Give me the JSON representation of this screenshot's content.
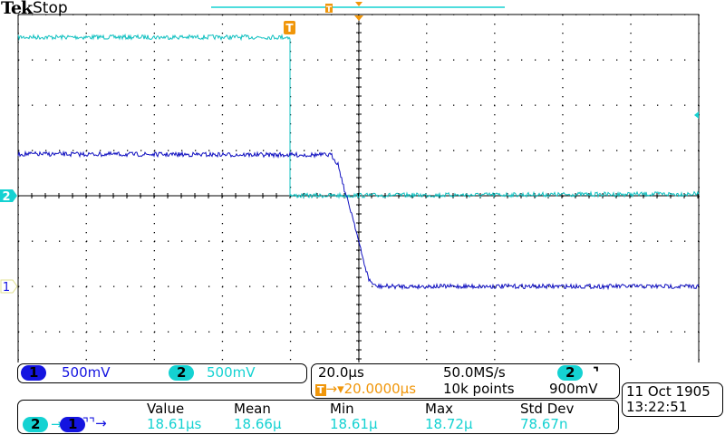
{
  "header": {
    "brand": "Tek",
    "status": "Stop"
  },
  "colors": {
    "ch1": "#1010c8",
    "ch2": "#10c8c8",
    "trigger": "#f0960a",
    "grid": "#000000"
  },
  "channels": [
    {
      "number": "1",
      "scale": "500mV",
      "color": "#1414e0"
    },
    {
      "number": "2",
      "scale": "500mV",
      "color": "#14d2d2"
    }
  ],
  "timebase": {
    "scale": "20.0µs",
    "sample_rate": "50.0MS/s",
    "trigger_delay": "20.0000µs",
    "record_length": "10k points",
    "trigger_source": "2",
    "trigger_slope_icon": "falling-edge-icon",
    "trigger_level": "900mV"
  },
  "measurement": {
    "source_from": "2",
    "source_to": "1",
    "type_icon": "delay-falling-falling-icon",
    "headers": [
      "Value",
      "Mean",
      "Min",
      "Max",
      "Std Dev"
    ],
    "values": [
      "18.61µs",
      "18.66µ",
      "18.61µ",
      "18.72µ",
      "78.67n"
    ]
  },
  "datetime": {
    "date": "11 Oct  1905",
    "time": "13:22:51"
  },
  "chart_data": {
    "type": "line",
    "xunit": "µs",
    "yunit": "V",
    "xlim": [
      -80,
      120
    ],
    "series": [
      {
        "channel": "2",
        "points": [
          [
            -80,
            1.75
          ],
          [
            0,
            1.75
          ],
          [
            0.1,
            0.0
          ],
          [
            120,
            0.02
          ]
        ]
      },
      {
        "channel": "1",
        "points": [
          [
            -80,
            1.46
          ],
          [
            12,
            1.45
          ],
          [
            14,
            1.35
          ],
          [
            16,
            1.05
          ],
          [
            18.6,
            0.73
          ],
          [
            21,
            0.35
          ],
          [
            23,
            0.08
          ],
          [
            25,
            0.0
          ],
          [
            120,
            0.0
          ]
        ]
      }
    ]
  }
}
